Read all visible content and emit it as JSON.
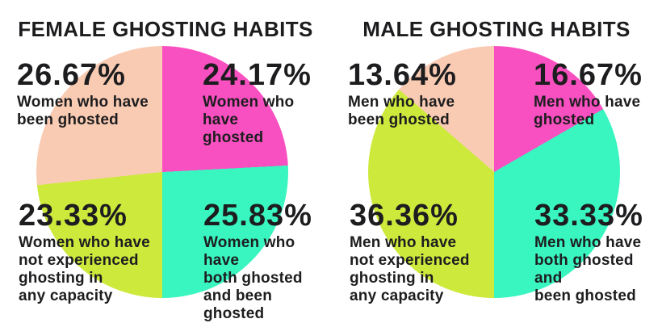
{
  "colors": {
    "magenta": "#F950C1",
    "turquoise": "#39F5BF",
    "lime": "#CDE93C",
    "peach": "#FACBB3",
    "text": "#1D1D1F",
    "background": "#FFFFFF"
  },
  "chart_data": [
    {
      "type": "pie",
      "title": "FEMALE GHOSTING HABITS",
      "labels": [
        "Women who have ghosted",
        "Women who have both ghosted and been ghosted",
        "Women who have not experienced ghosting in any capacity",
        "Women who have been ghosted"
      ],
      "values": [
        24.17,
        25.83,
        23.33,
        26.67
      ],
      "colors": [
        "#F950C1",
        "#39F5BF",
        "#CDE93C",
        "#FACBB3"
      ],
      "start_angle_deg": 0,
      "direction": "clockwise",
      "legend": "none",
      "data_labels": "outside-overlaid"
    },
    {
      "type": "pie",
      "title": "MALE GHOSTING HABITS",
      "labels": [
        "Men who have ghosted",
        "Men who have both ghosted and been ghosted",
        "Men who have not experienced ghosting in any capacity",
        "Men who have been ghosted"
      ],
      "values": [
        16.67,
        33.33,
        36.36,
        13.64
      ],
      "colors": [
        "#F950C1",
        "#39F5BF",
        "#CDE93C",
        "#FACBB3"
      ],
      "start_angle_deg": 0,
      "direction": "clockwise",
      "legend": "none",
      "data_labels": "outside-overlaid"
    }
  ],
  "annotations": {
    "female": {
      "top_left": {
        "pct": "26.67%",
        "desc": "Women who have\nbeen ghosted"
      },
      "top_right": {
        "pct": "24.17%",
        "desc": "Women who have\nghosted"
      },
      "bottom_left": {
        "pct": "23.33%",
        "desc": "Women who have\nnot experienced\nghosting in\nany capacity"
      },
      "bottom_right": {
        "pct": "25.83%",
        "desc": "Women who have\nboth ghosted\nand been ghosted"
      }
    },
    "male": {
      "top_left": {
        "pct": "13.64%",
        "desc": "Men who have\nbeen ghosted"
      },
      "top_right": {
        "pct": "16.67%",
        "desc": "Men who have\nghosted"
      },
      "bottom_left": {
        "pct": "36.36%",
        "desc": "Men who have\nnot experienced\nghosting in\nany capacity"
      },
      "bottom_right": {
        "pct": "33.33%",
        "desc": "Men who have\nboth ghosted and\nbeen ghosted"
      }
    }
  }
}
